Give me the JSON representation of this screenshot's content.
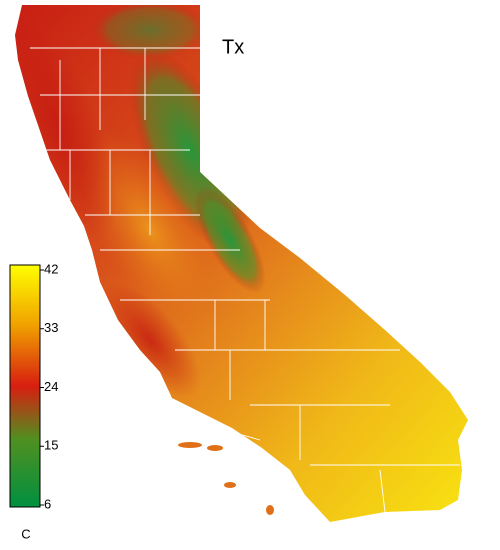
{
  "title": "Tx",
  "colorbar": {
    "range": [
      6,
      42
    ],
    "ticks": [
      6,
      15,
      24,
      33,
      42
    ],
    "unit": "C"
  }
}
